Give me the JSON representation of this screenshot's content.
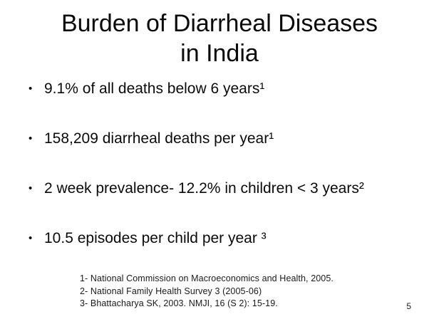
{
  "slide": {
    "title": {
      "line1": "Burden of Diarrheal Diseases",
      "line2": "in India"
    },
    "bullet_glyph": "•",
    "bullets": [
      "9.1% of all deaths below 6 years¹",
      "158,209 diarrheal deaths per year¹",
      "2 week prevalence- 12.2% in children < 3 years²",
      "10.5 episodes per child per year ³"
    ],
    "footnotes": [
      "1- National Commission on Macroeconomics and Health, 2005.",
      "2- National Family Health Survey 3 (2005-06)",
      "3- Bhattacharya SK, 2003. NMJI, 16 (S 2): 15-19."
    ],
    "page_number": "5",
    "colors": {
      "background": "#ffffff",
      "text": "#000000"
    }
  }
}
